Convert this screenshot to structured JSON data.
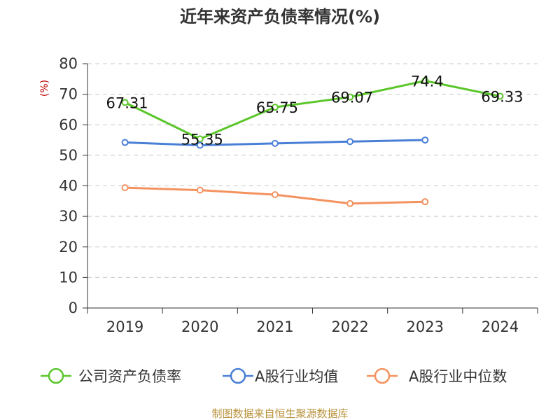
{
  "chart_data": {
    "type": "line",
    "title": "近年来资产负债率情况(%)",
    "ylabel": "(%)",
    "xlabel": "",
    "ylim": [
      0,
      80
    ],
    "yticks": [
      0,
      10,
      20,
      30,
      40,
      50,
      60,
      70,
      80
    ],
    "categories": [
      "2019",
      "2020",
      "2021",
      "2022",
      "2023",
      "2024"
    ],
    "grid": true,
    "legend_position": "bottom",
    "series": [
      {
        "name": "公司资产负债率",
        "color": "#5bc62a",
        "values": [
          67.31,
          55.35,
          65.75,
          69.07,
          74.4,
          69.33
        ],
        "labels": [
          "67.31",
          "55.35",
          "65.75",
          "69.07",
          "74.4",
          "69.33"
        ]
      },
      {
        "name": "A股行业均值",
        "color": "#4a7fd6",
        "values": [
          54.2,
          53.3,
          53.9,
          54.5,
          55.0,
          null
        ]
      },
      {
        "name": "A股行业中位数",
        "color": "#f4925f",
        "values": [
          39.4,
          38.6,
          37.1,
          34.2,
          34.8,
          null
        ]
      }
    ],
    "source": "制图数据来自恒生聚源数据库"
  }
}
